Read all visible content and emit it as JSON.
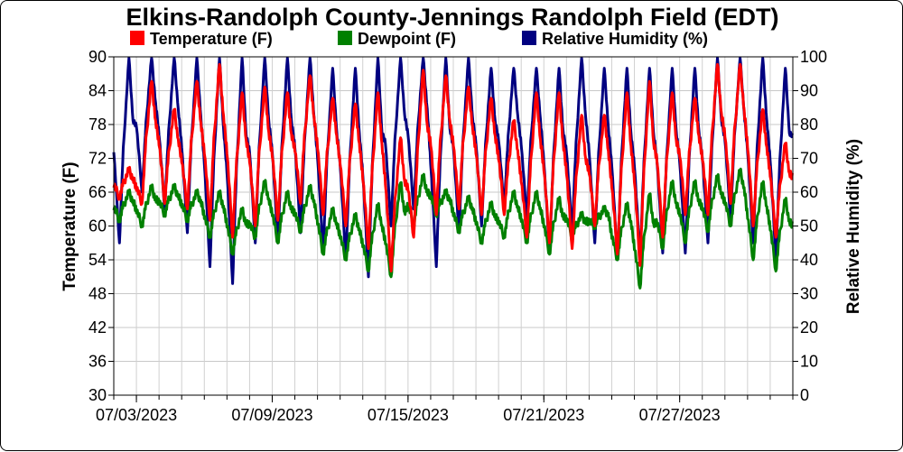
{
  "chart_data": {
    "type": "line",
    "title": "Elkins-Randolph County-Jennings Randolph Field (EDT)",
    "ylabel": "Temperature (F)",
    "y2label": "Relative Humidity (%)",
    "ylim": [
      30,
      90
    ],
    "y2lim": [
      0,
      100
    ],
    "yticks": [
      "30",
      "36",
      "42",
      "48",
      "54",
      "60",
      "66",
      "72",
      "78",
      "84",
      "90"
    ],
    "y2ticks": [
      "0",
      "10",
      "20",
      "30",
      "40",
      "50",
      "60",
      "70",
      "80",
      "90",
      "100"
    ],
    "xlim": [
      "07/02/2023 00:00",
      "08/01/2023 00:00"
    ],
    "xtick_labels": [
      "07/03/2023",
      "07/09/2023",
      "07/15/2023",
      "07/21/2023",
      "07/27/2023"
    ],
    "grid": true,
    "legend_position": "top",
    "sampling": "daily min/max, min near 06:00, max near 16:00",
    "x": [
      "07/02",
      "07/03",
      "07/04",
      "07/05",
      "07/06",
      "07/07",
      "07/08",
      "07/09",
      "07/10",
      "07/11",
      "07/12",
      "07/13",
      "07/14",
      "07/15",
      "07/16",
      "07/17",
      "07/18",
      "07/19",
      "07/20",
      "07/21",
      "07/22",
      "07/23",
      "07/24",
      "07/25",
      "07/26",
      "07/27",
      "07/28",
      "07/29",
      "07/30",
      "07/31"
    ],
    "series": [
      {
        "name": "Temperature (F)",
        "color": "#ff0000",
        "axis": "left",
        "daily_min": [
          65,
          64,
          64,
          63,
          61,
          58,
          60,
          61,
          64,
          62,
          60,
          56,
          52,
          58,
          62,
          63,
          62,
          62,
          58,
          57,
          56,
          60,
          55,
          53,
          58,
          62,
          62,
          64,
          60,
          58
        ],
        "daily_max": [
          70,
          86,
          81,
          86,
          89,
          84,
          85,
          84,
          87,
          83,
          82,
          84,
          76,
          88,
          87,
          85,
          83,
          79,
          84,
          84,
          80,
          80,
          84,
          86,
          84,
          83,
          89,
          89,
          81,
          75
        ]
      },
      {
        "name": "Dewpoint (F)",
        "color": "#008000",
        "axis": "left",
        "daily_min": [
          61,
          60,
          62,
          61,
          58,
          55,
          58,
          57,
          59,
          55,
          54,
          52,
          51,
          60,
          62,
          59,
          57,
          58,
          57,
          55,
          58,
          60,
          54,
          49,
          56,
          57,
          59,
          60,
          54,
          52
        ],
        "daily_max": [
          66,
          67,
          67,
          66,
          66,
          63,
          68,
          66,
          67,
          63,
          62,
          64,
          68,
          69,
          66,
          65,
          64,
          66,
          66,
          65,
          62,
          63,
          64,
          66,
          68,
          68,
          69,
          70,
          68,
          65
        ]
      },
      {
        "name": "Relative Humidity (%)",
        "color": "#000080",
        "axis": "right",
        "daily_min": [
          45,
          60,
          55,
          48,
          38,
          33,
          45,
          45,
          48,
          42,
          40,
          35,
          50,
          55,
          38,
          48,
          50,
          55,
          52,
          42,
          48,
          45,
          40,
          40,
          42,
          42,
          45,
          52,
          45,
          40
        ],
        "daily_max": [
          100,
          100,
          100,
          100,
          100,
          100,
          100,
          100,
          100,
          97,
          97,
          100,
          100,
          100,
          100,
          100,
          97,
          97,
          97,
          97,
          100,
          97,
          97,
          97,
          97,
          97,
          100,
          100,
          100,
          97
        ]
      }
    ]
  }
}
